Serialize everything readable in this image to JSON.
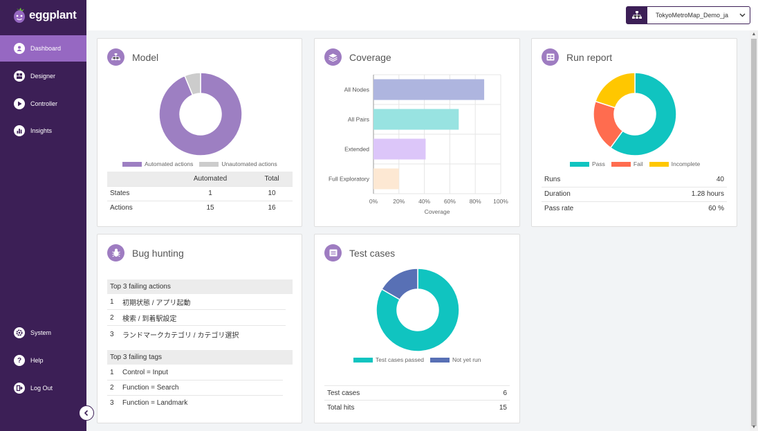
{
  "app": {
    "logo_text": "eggplant",
    "model_selector": "TokyoMetroMap_Demo_ja"
  },
  "sidebar": {
    "items": [
      {
        "label": "Dashboard",
        "icon": "dashboard-icon"
      },
      {
        "label": "Designer",
        "icon": "designer-icon"
      },
      {
        "label": "Controller",
        "icon": "play-icon"
      },
      {
        "label": "Insights",
        "icon": "chart-icon"
      },
      {
        "label": "System",
        "icon": "gear-icon"
      },
      {
        "label": "Help",
        "icon": "question-icon"
      },
      {
        "label": "Log Out",
        "icon": "logout-icon"
      }
    ]
  },
  "colors": {
    "sidebar": "#3c1f56",
    "active": "#9668c2",
    "automated": "#9d7fc2",
    "unautomated": "#cccccc",
    "pass": "#10c4c0",
    "fail": "#ff6c4f",
    "incomplete": "#ffc700",
    "tc_passed": "#10c4c0",
    "tc_notrun": "#5870b5"
  },
  "model": {
    "title": "Model",
    "legend": [
      "Automated actions",
      "Unautomated actions"
    ],
    "table": {
      "headers": [
        "",
        "Automated",
        "Total"
      ],
      "rows": [
        {
          "name": "States",
          "automated": "1",
          "total": "10"
        },
        {
          "name": "Actions",
          "automated": "15",
          "total": "16"
        }
      ]
    },
    "donut": [
      {
        "label": "Automated actions",
        "value": 15
      },
      {
        "label": "Unautomated actions",
        "value": 1
      }
    ]
  },
  "coverage": {
    "title": "Coverage",
    "chart_data": {
      "type": "bar",
      "orientation": "horizontal",
      "categories": [
        "All Nodes",
        "All Pairs",
        "Extended",
        "Full Exploratory"
      ],
      "values": [
        87,
        67,
        41,
        20
      ],
      "xlabel": "Coverage",
      "xticks": [
        "0%",
        "20%",
        "40%",
        "60%",
        "80%",
        "100%"
      ],
      "xlim": [
        0,
        100
      ],
      "colors": [
        "#aeb5df",
        "#98e3e1",
        "#dcc6f9",
        "#fde8d3"
      ]
    }
  },
  "run_report": {
    "title": "Run report",
    "legend": [
      "Pass",
      "Fail",
      "Incomplete"
    ],
    "donut": [
      {
        "label": "Pass",
        "value": 24
      },
      {
        "label": "Fail",
        "value": 8
      },
      {
        "label": "Incomplete",
        "value": 8
      }
    ],
    "stats": [
      {
        "label": "Runs",
        "value": "40"
      },
      {
        "label": "Duration",
        "value": "1.28 hours"
      },
      {
        "label": "Pass rate",
        "value": "60 %"
      }
    ]
  },
  "bug_hunting": {
    "title": "Bug hunting",
    "actions_header": "Top 3 failing actions",
    "actions": [
      {
        "num": "1",
        "text": "初期状態 / アプリ起動"
      },
      {
        "num": "2",
        "text": "検索 / 到着駅設定"
      },
      {
        "num": "3",
        "text": "ランドマークカテゴリ / カテゴリ選択"
      }
    ],
    "tags_header": "Top 3 failing tags",
    "tags": [
      {
        "num": "1",
        "text": "Control = Input"
      },
      {
        "num": "2",
        "text": "Function = Search"
      },
      {
        "num": "3",
        "text": "Function = Landmark"
      }
    ]
  },
  "test_cases": {
    "title": "Test cases",
    "legend": [
      "Test cases passed",
      "Not yet run"
    ],
    "donut": [
      {
        "label": "Test cases passed",
        "value": 5
      },
      {
        "label": "Not yet run",
        "value": 1
      }
    ],
    "stats": [
      {
        "label": "Test cases",
        "value": "6"
      },
      {
        "label": "Total hits",
        "value": "15"
      }
    ]
  }
}
